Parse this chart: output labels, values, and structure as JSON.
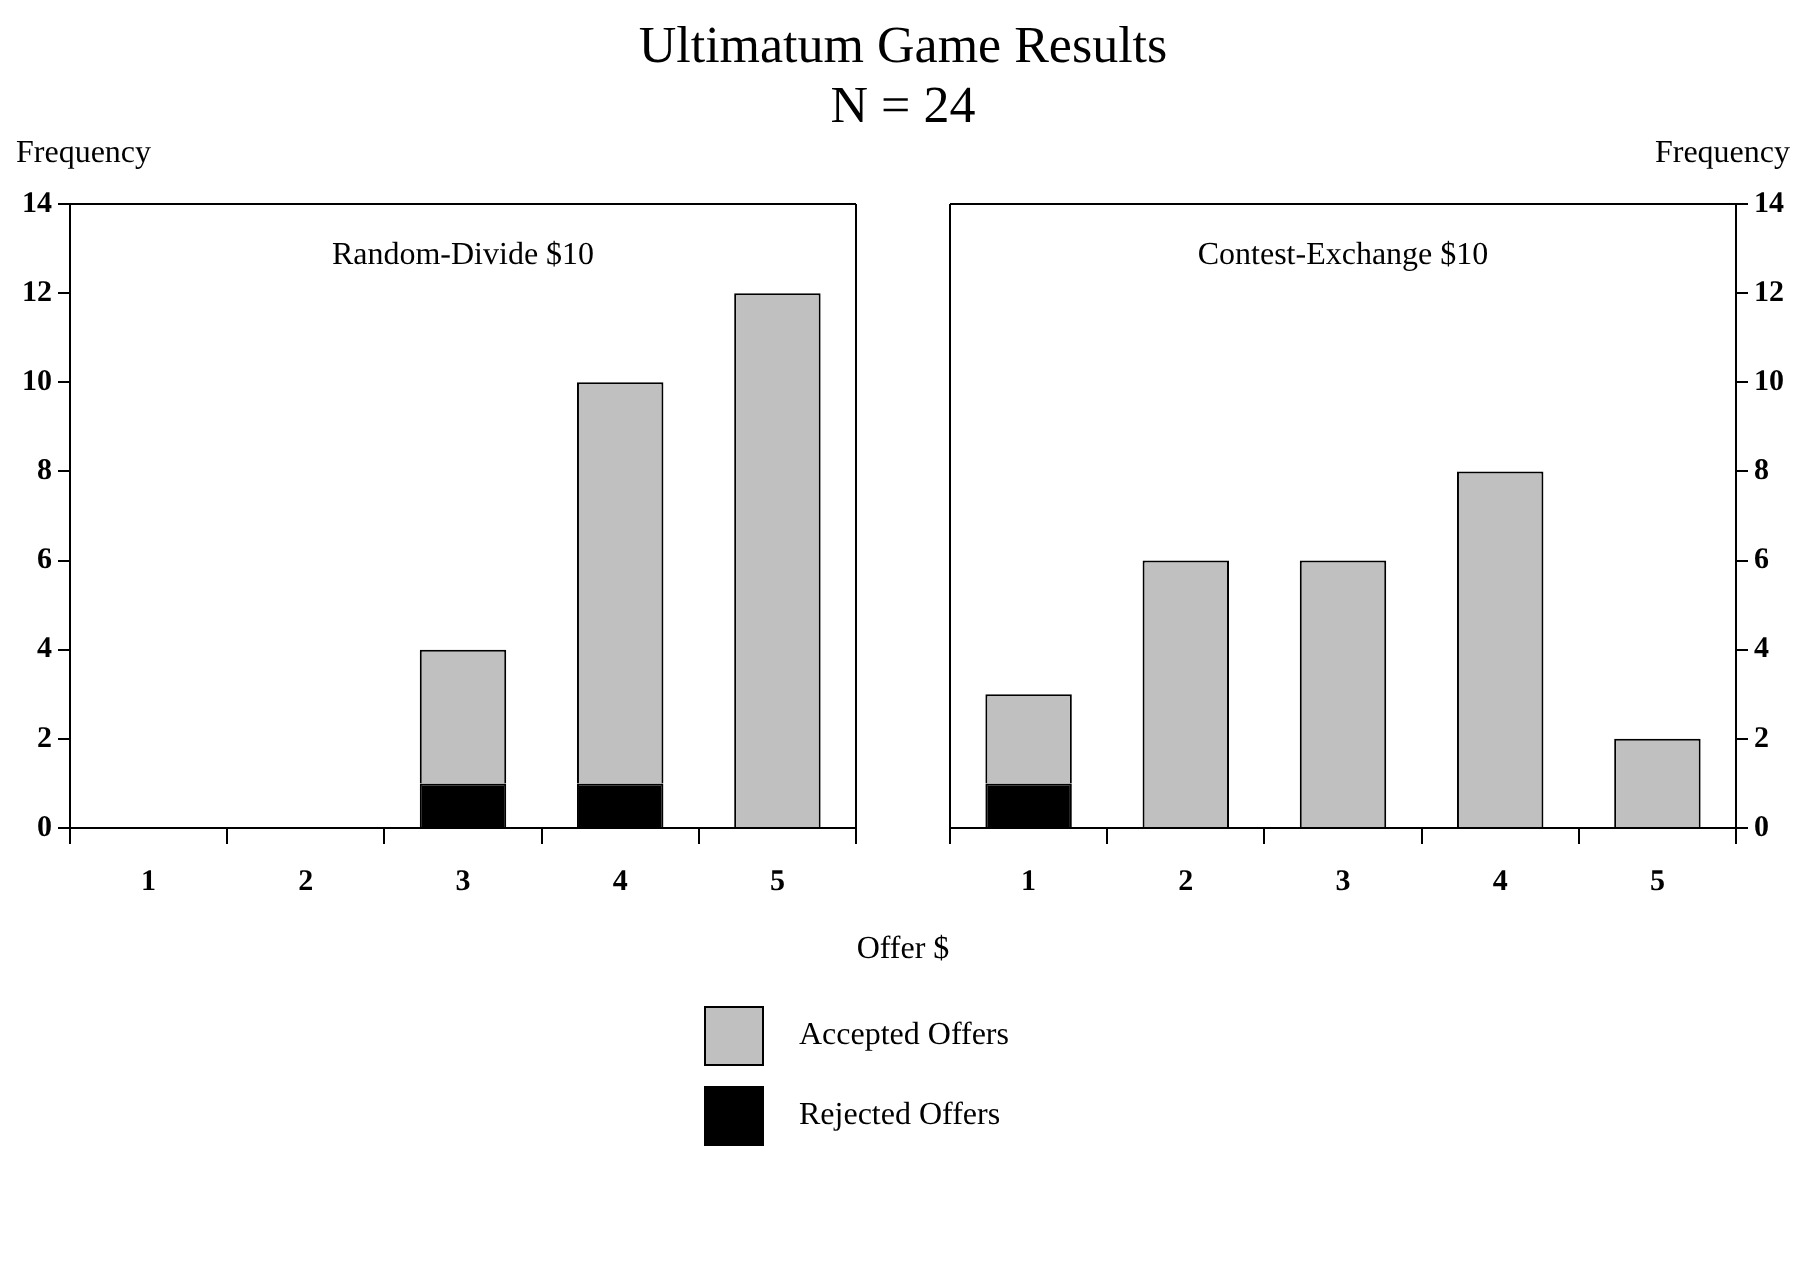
{
  "chart_data": [
    {
      "type": "bar",
      "title": "Ultimatum Game Results",
      "subtitle": "N = 24",
      "xlabel": "Offer $",
      "ylabel": "Frequency",
      "annotations": [
        "Random-Divide $10"
      ],
      "categories": [
        "1",
        "2",
        "3",
        "4",
        "5"
      ],
      "stacked": true,
      "ylim": [
        0,
        14
      ],
      "yticks": [
        0,
        2,
        4,
        6,
        8,
        10,
        12,
        14
      ],
      "grid": false,
      "legend": "bottom",
      "series": [
        {
          "name": "Rejected Offers",
          "color": "#000000",
          "values": [
            0,
            0,
            1,
            1,
            0
          ]
        },
        {
          "name": "Accepted Offers",
          "color": "#c0c0c0",
          "values": [
            0,
            0,
            3,
            9,
            12
          ]
        }
      ]
    },
    {
      "type": "bar",
      "ylabel": "Frequency",
      "annotations": [
        "Contest-Exchange $10"
      ],
      "categories": [
        "1",
        "2",
        "3",
        "4",
        "5"
      ],
      "stacked": true,
      "ylim": [
        0,
        14
      ],
      "yticks": [
        0,
        2,
        4,
        6,
        8,
        10,
        12,
        14
      ],
      "grid": false,
      "series": [
        {
          "color": "#000000",
          "values": [
            1,
            0,
            0,
            0,
            0
          ]
        },
        {
          "color": "#c0c0c0",
          "values": [
            2,
            6,
            6,
            8,
            2
          ]
        }
      ]
    }
  ]
}
